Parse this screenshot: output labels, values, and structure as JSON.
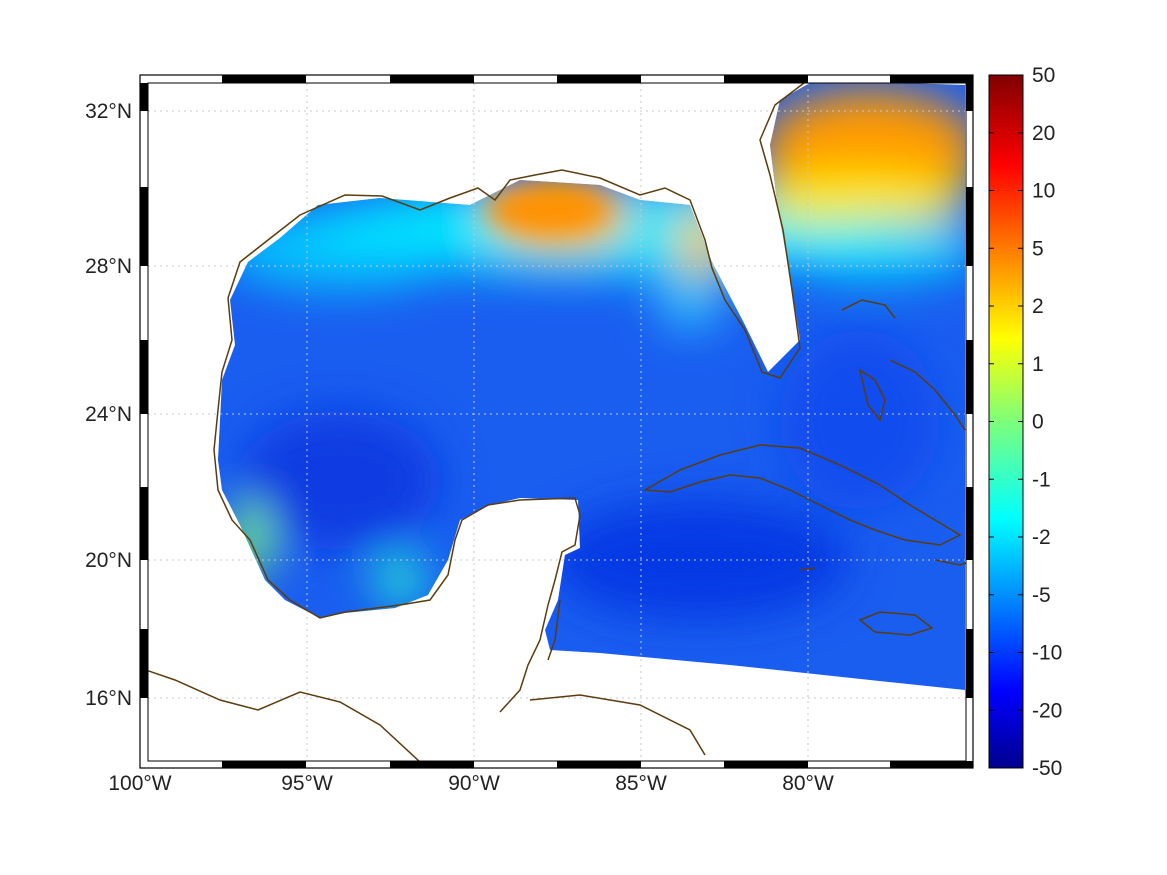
{
  "map": {
    "longitude_ticks": [
      "100°W",
      "95°W",
      "90°W",
      "85°W",
      "80°W"
    ],
    "latitude_ticks": [
      "32°N",
      "28°N",
      "24°N",
      "20°N",
      "16°N"
    ],
    "extent": {
      "lon_min": -100,
      "lon_max": -75,
      "lat_min": 14.3,
      "lat_max": 33
    },
    "grid": "dotted",
    "frame": "black-white checkered border",
    "field_pattern": "high positive values along northern Gulf coast and Atlantic off Georgia/Carolinas; strongly negative values over central Gulf and Caribbean",
    "land_color": "#ffffff",
    "coastline_color": "#5c3c0c"
  },
  "colorbar": {
    "tick_labels": [
      "50",
      "20",
      "10",
      "5",
      "2",
      "1",
      "0",
      "-1",
      "-2",
      "-5",
      "-10",
      "-20",
      "-50"
    ],
    "tick_values": [
      50,
      20,
      10,
      5,
      2,
      1,
      0,
      -1,
      -2,
      -5,
      -10,
      -20,
      -50
    ],
    "colormap": "jet",
    "range": [
      -50,
      50
    ]
  }
}
